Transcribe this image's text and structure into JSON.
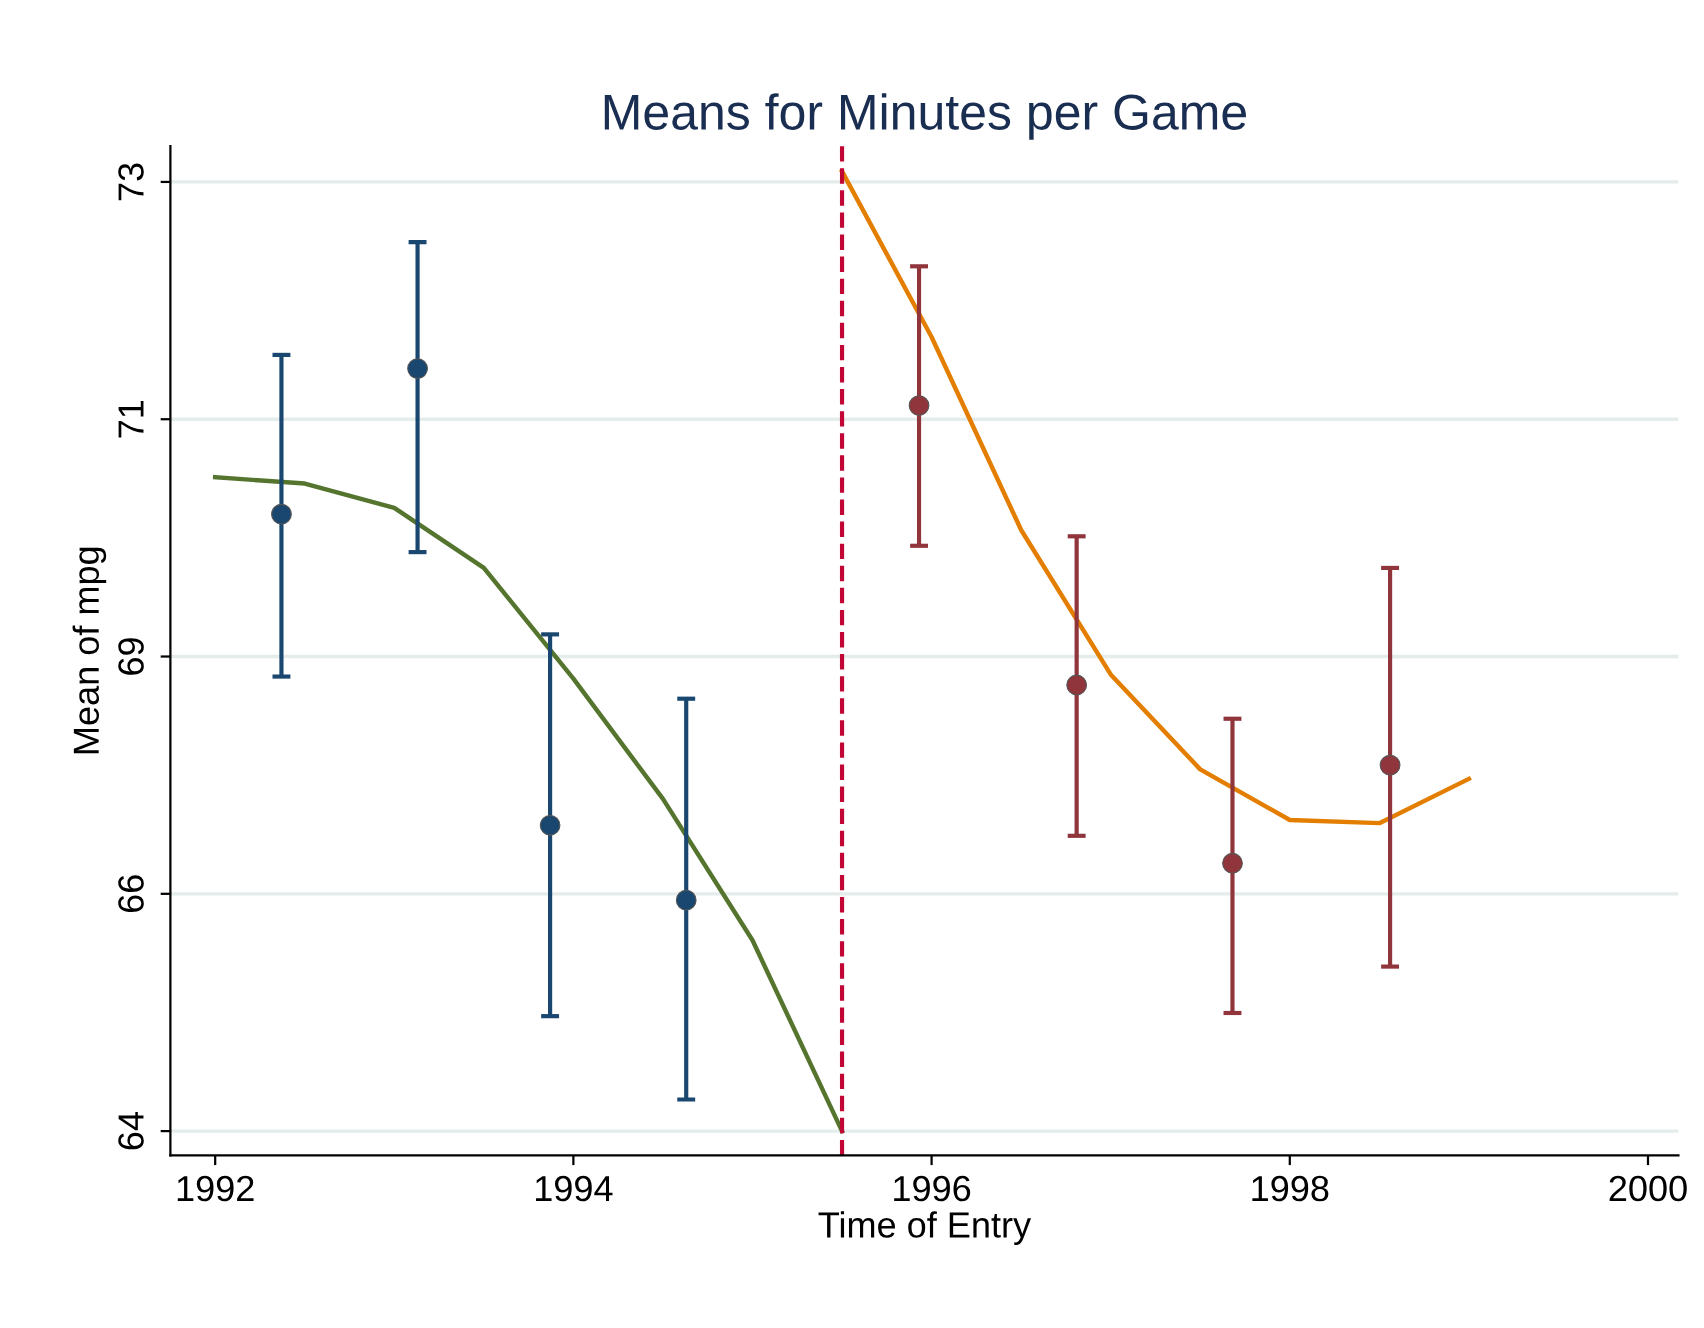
{
  "chart_data": {
    "type": "scatter",
    "title": "Means for Minutes per Game",
    "xlabel": "Time of Entry",
    "ylabel": "Mean of mpg",
    "xlim": [
      1991.75,
      2000.17
    ],
    "xticks": [
      1992,
      1994,
      1996,
      1998,
      2000
    ],
    "ylim": [
      63.77,
      73.34
    ],
    "yticks": [
      {
        "value": 64,
        "label": "64"
      },
      {
        "value": 66.25,
        "label": "66"
      },
      {
        "value": 68.5,
        "label": "69"
      },
      {
        "value": 70.75,
        "label": "71"
      },
      {
        "value": 73,
        "label": "73"
      }
    ],
    "grid": "y",
    "series": [
      {
        "color": "#1a476f",
        "marker": "circle",
        "x": [
          1992.37,
          1993.13,
          1993.87,
          1994.63
        ],
        "values": [
          69.85,
          71.23,
          66.9,
          66.19
        ],
        "errors": [
          [
            68.31,
            71.36
          ],
          [
            69.49,
            72.43
          ],
          [
            65.09,
            68.71
          ],
          [
            64.3,
            68.1
          ]
        ]
      },
      {
        "color": "#90353b",
        "marker": "circle",
        "x": [
          1995.93,
          1996.81,
          1997.68,
          1998.56
        ],
        "values": [
          70.88,
          68.23,
          66.54,
          67.47
        ],
        "errors": [
          [
            69.55,
            72.2
          ],
          [
            66.8,
            69.64
          ],
          [
            65.12,
            67.91
          ],
          [
            65.56,
            69.34
          ]
        ]
      },
      {
        "type": "line",
        "marker": "none",
        "color": "#55752f",
        "x": [
          1992,
          1992.5,
          1993,
          1993.5,
          1994,
          1994.5,
          1995,
          1995.5
        ],
        "values": [
          70.2,
          70.14,
          69.91,
          69.34,
          68.29,
          67.15,
          65.81,
          64
        ]
      },
      {
        "type": "line",
        "marker": "none",
        "color": "#e37e00",
        "x": [
          1995.5,
          1996,
          1996.5,
          1997,
          1997.5,
          1998,
          1998.5,
          1999
        ],
        "values": [
          73.1,
          71.53,
          69.7,
          68.33,
          67.43,
          66.95,
          66.92,
          67.34
        ]
      }
    ],
    "ref_lines": [
      {
        "axis": "x",
        "value": 1995.5,
        "color": "#c10534",
        "line_style": "dashed"
      }
    ]
  }
}
